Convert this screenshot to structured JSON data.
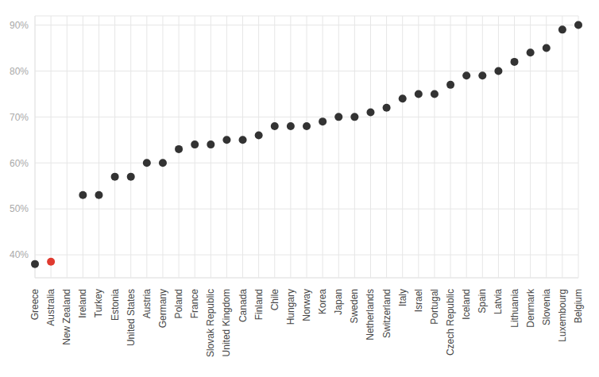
{
  "chart_data": {
    "type": "scatter",
    "categories": [
      "Greece",
      "Australia",
      "New Zealand",
      "Ireland",
      "Turkey",
      "Estonia",
      "United States",
      "Austria",
      "Germany",
      "Poland",
      "France",
      "Slovak Republic",
      "United Kingdom",
      "Canada",
      "Finland",
      "Chile",
      "Hungary",
      "Norway",
      "Korea",
      "Japan",
      "Sweden",
      "Netherlands",
      "Switzerland",
      "Italy",
      "Israel",
      "Portugal",
      "Czech Republic",
      "Iceland",
      "Spain",
      "Latvia",
      "Lithuania",
      "Denmark",
      "Slovenia",
      "Luxembourg",
      "Belgium"
    ],
    "values": [
      38,
      38.5,
      null,
      53,
      53,
      57,
      57,
      60,
      60,
      63,
      64,
      64,
      65,
      65,
      66,
      68,
      68,
      68,
      69,
      70,
      70,
      71,
      72,
      74,
      75,
      75,
      77,
      79,
      79,
      80,
      82,
      84,
      85,
      89,
      90
    ],
    "colors": [
      "#333333",
      "#e03a2f",
      "#333333",
      "#333333",
      "#333333",
      "#333333",
      "#333333",
      "#333333",
      "#333333",
      "#333333",
      "#333333",
      "#333333",
      "#333333",
      "#333333",
      "#333333",
      "#333333",
      "#333333",
      "#333333",
      "#333333",
      "#333333",
      "#333333",
      "#333333",
      "#333333",
      "#333333",
      "#333333",
      "#333333",
      "#333333",
      "#333333",
      "#333333",
      "#333333",
      "#333333",
      "#333333",
      "#333333",
      "#333333",
      "#333333"
    ],
    "ylim": [
      35,
      92
    ],
    "yticks": [
      {
        "value": 40,
        "label": "40%"
      },
      {
        "value": 50,
        "label": "50%"
      },
      {
        "value": 60,
        "label": "60%"
      },
      {
        "value": 70,
        "label": "70%"
      },
      {
        "value": 80,
        "label": "80%"
      },
      {
        "value": 90,
        "label": "90%"
      }
    ],
    "grid": true,
    "marker": "circle"
  }
}
